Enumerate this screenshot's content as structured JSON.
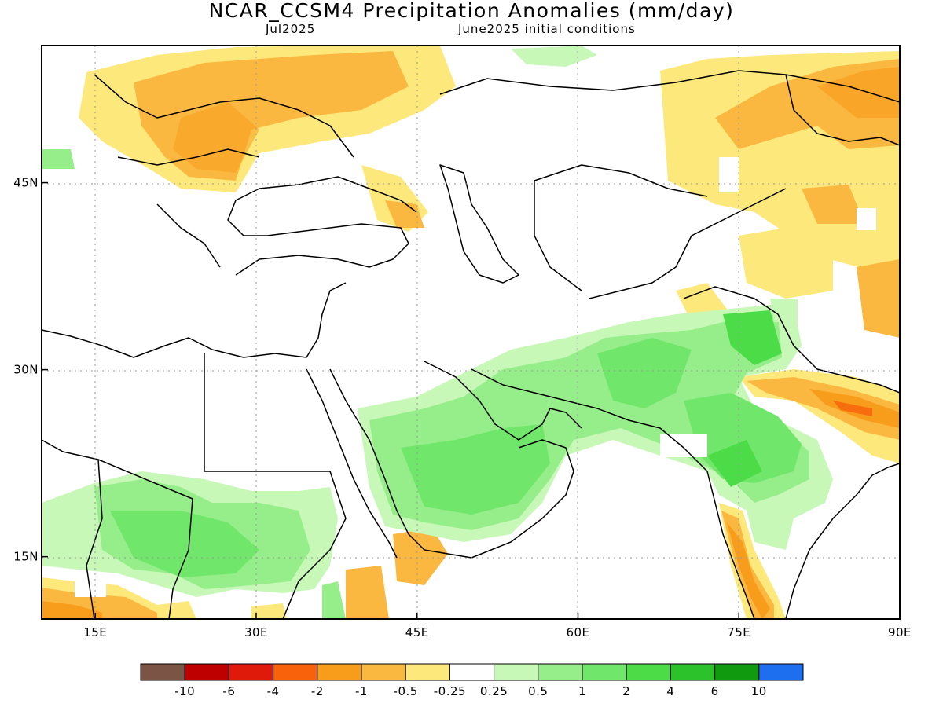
{
  "title": "NCAR_CCSM4 Precipitation Anomalies (mm/day)",
  "subtitle_left": "Jul2025",
  "subtitle_right": "June2025 initial conditions",
  "map": {
    "lon_range": [
      10,
      90
    ],
    "lat_range": [
      10,
      56
    ],
    "lon_ticks": [
      {
        "value": 15,
        "label": "15E"
      },
      {
        "value": 30,
        "label": "30E"
      },
      {
        "value": 45,
        "label": "45E"
      },
      {
        "value": 60,
        "label": "60E"
      },
      {
        "value": 75,
        "label": "75E"
      },
      {
        "value": 90,
        "label": "90E"
      }
    ],
    "lat_ticks": [
      {
        "value": 45,
        "label": "45N"
      },
      {
        "value": 30,
        "label": "30N"
      },
      {
        "value": 15,
        "label": "15N"
      }
    ],
    "grid": "dotted"
  },
  "colorbar": {
    "colors": [
      "#7c5446",
      "#be0000",
      "#e01a0a",
      "#f8620a",
      "#f89c1c",
      "#fbb840",
      "#fde87c",
      "#ffffff",
      "#c8f8b8",
      "#96ee8a",
      "#70e66a",
      "#4cdc48",
      "#2cc22c",
      "#109a10",
      "#1e6ef0"
    ],
    "labels": [
      "-10",
      "-6",
      "-4",
      "-2",
      "-1",
      "-0.5",
      "-0.25",
      "0.25",
      "0.5",
      "1",
      "2",
      "4",
      "6",
      "10"
    ]
  }
}
